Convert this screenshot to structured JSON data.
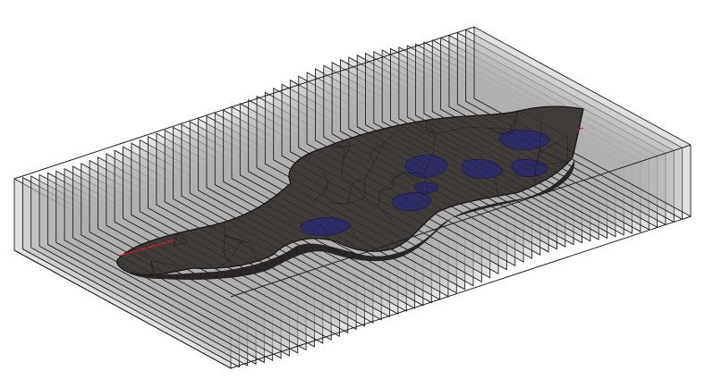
{
  "scene": {
    "background": "#ffffff",
    "slice_count": 56,
    "slice_fill": "#b0b0b0",
    "slice_fill_opacity": 0.38,
    "slice_stroke": "#1e1e1e",
    "body_fill": "#3a3633",
    "body_mesh_stroke": "#141414",
    "body_shadow": "#242020",
    "inclusion_color": "#2a2a70",
    "axis_accent_color": "#c8202a"
  }
}
